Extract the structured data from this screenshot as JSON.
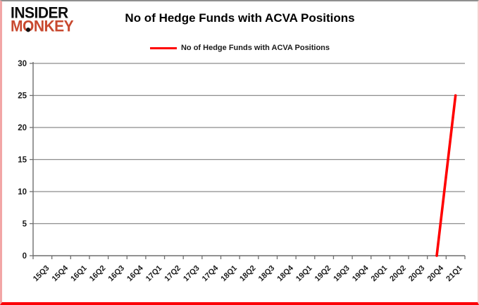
{
  "logo": {
    "line1": "INSIDER",
    "line2_prefix": "M",
    "line2_o": "O",
    "line2_suffix": "NKEY",
    "line2_color": "#c8492f"
  },
  "header": {
    "title": "No of Hedge Funds with ACVA Positions"
  },
  "legend": {
    "label": "No of Hedge Funds with ACVA Positions",
    "color": "#ff0000"
  },
  "chart_data": {
    "type": "line",
    "title": "No of Hedge Funds with ACVA Positions",
    "categories": [
      "15Q3",
      "15Q4",
      "16Q1",
      "16Q2",
      "16Q3",
      "16Q4",
      "17Q1",
      "17Q2",
      "17Q3",
      "17Q4",
      "18Q1",
      "18Q2",
      "18Q3",
      "18Q4",
      "19Q1",
      "19Q2",
      "19Q3",
      "19Q4",
      "20Q1",
      "20Q2",
      "20Q3",
      "20Q4",
      "21Q1"
    ],
    "series": [
      {
        "name": "No of Hedge Funds with ACVA Positions",
        "color": "#ff0000",
        "values": [
          null,
          null,
          null,
          null,
          null,
          null,
          null,
          null,
          null,
          null,
          null,
          null,
          null,
          null,
          null,
          null,
          null,
          null,
          null,
          null,
          null,
          0,
          25
        ]
      }
    ],
    "ylim": [
      0,
      30
    ],
    "yticks": [
      0,
      5,
      10,
      15,
      20,
      25,
      30
    ],
    "xlabel": "",
    "ylabel": "",
    "grid": true,
    "legend_position": "top",
    "gridline_color": "#8c8c8c",
    "axis_color": "#6e6e6e",
    "tick_color": "#6e6e6e"
  }
}
